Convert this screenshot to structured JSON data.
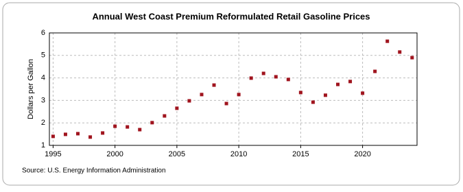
{
  "chart_data": {
    "type": "scatter",
    "title": "Annual West Coast Premium Reformulated Retail Gasoline Prices",
    "y_label": "Dollars per Gallon",
    "source": "Source: U.S. Energy Information Administration",
    "color": "#a0141e",
    "x": [
      1995,
      1996,
      1997,
      1998,
      1999,
      2000,
      2001,
      2002,
      2003,
      2004,
      2005,
      2006,
      2007,
      2008,
      2009,
      2010,
      2011,
      2012,
      2013,
      2014,
      2015,
      2016,
      2017,
      2018,
      2019,
      2020,
      2021,
      2022,
      2023,
      2024
    ],
    "values": [
      1.4,
      1.49,
      1.52,
      1.37,
      1.55,
      1.85,
      1.82,
      1.7,
      2.01,
      2.31,
      2.65,
      2.98,
      3.26,
      3.68,
      2.86,
      3.26,
      3.99,
      4.2,
      4.05,
      3.93,
      3.35,
      2.92,
      3.23,
      3.71,
      3.84,
      3.32,
      4.29,
      5.63,
      5.15,
      4.9
    ],
    "xlim": [
      1994.7,
      2024.4
    ],
    "xticks": [
      1995,
      2000,
      2005,
      2010,
      2015,
      2020
    ],
    "ylim": [
      1,
      6
    ],
    "yticks": [
      1,
      2,
      3,
      4,
      5,
      6
    ],
    "grid": true
  }
}
